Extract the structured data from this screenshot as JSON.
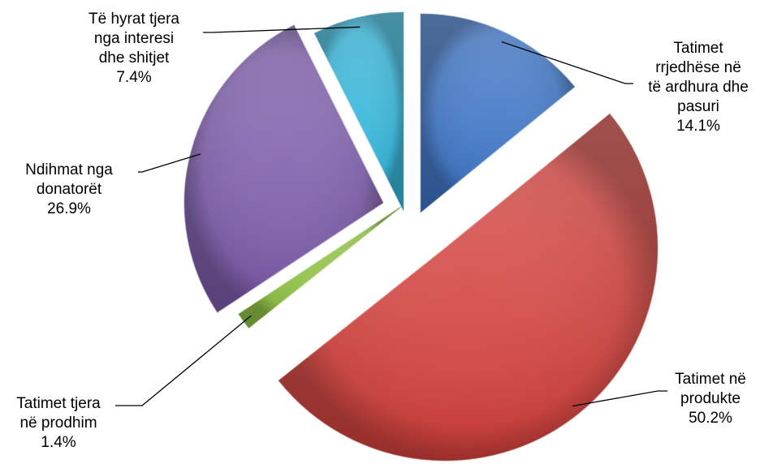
{
  "chart_data": {
    "type": "pie",
    "title": "",
    "exploded": true,
    "slices": [
      {
        "lines": [
          "Tatimet",
          "rrjedhëse në",
          "të ardhura dhe",
          "pasuri"
        ],
        "value": 14.1,
        "value_label": "14.1%",
        "color": "#3a72c4"
      },
      {
        "lines": [
          "Tatimet në",
          "produkte"
        ],
        "value": 50.2,
        "value_label": "50.2%",
        "color": "#d2403b"
      },
      {
        "lines": [
          "Tatimet tjera",
          "në prodhim"
        ],
        "value": 1.4,
        "value_label": "1.4%",
        "color": "#8cbf3f"
      },
      {
        "lines": [
          "Ndihmat nga",
          "donatorët"
        ],
        "value": 26.9,
        "value_label": "26.9%",
        "color": "#7a5aa8"
      },
      {
        "lines": [
          "Të hyrat tjera",
          "nga interesi",
          "dhe shitjet"
        ],
        "value": 7.4,
        "value_label": "7.4%",
        "color": "#2fb3d8"
      }
    ]
  }
}
